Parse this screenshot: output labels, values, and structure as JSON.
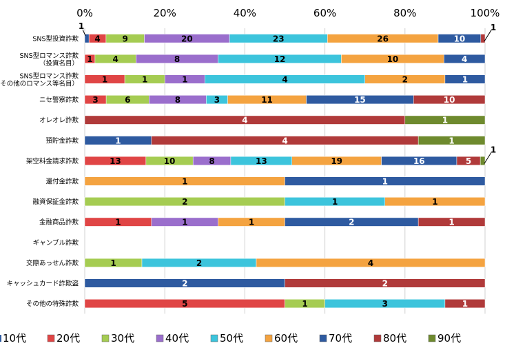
{
  "chart_data": {
    "type": "bar",
    "orientation": "horizontal",
    "stacked": "percent",
    "xlim": [
      0,
      100
    ],
    "x_ticks": [
      "0%",
      "20%",
      "40%",
      "60%",
      "80%",
      "100%"
    ],
    "grid": true,
    "legend_position": "bottom",
    "categories": [
      [
        "SNS型投資詐欺"
      ],
      [
        "SNS型ロマンス詐欺",
        "（投資名目）"
      ],
      [
        "SNS型ロマンス詐欺",
        "（その他のロマンス等名目）"
      ],
      [
        "ニセ警察詐欺"
      ],
      [
        "オレオレ詐欺"
      ],
      [
        "預貯金詐欺"
      ],
      [
        "架空料金請求詐欺"
      ],
      [
        "還付金詐欺"
      ],
      [
        "融資保証金詐欺"
      ],
      [
        "金融商品詐欺"
      ],
      [
        "ギャンブル詐欺"
      ],
      [
        "交際あっせん詐欺"
      ],
      [
        "キャッシュカード詐欺盗"
      ],
      [
        "その他の特殊詐欺"
      ]
    ],
    "series": [
      {
        "name": "10代",
        "color": "#2E5AA0",
        "values": [
          1,
          0,
          0,
          0,
          0,
          0,
          0,
          0,
          0,
          0,
          0,
          0,
          0,
          0
        ]
      },
      {
        "name": "20代",
        "color": "#E04545",
        "values": [
          4,
          1,
          1,
          3,
          0,
          0,
          13,
          0,
          0,
          1,
          0,
          0,
          0,
          5
        ]
      },
      {
        "name": "30代",
        "color": "#A5CC52",
        "values": [
          9,
          4,
          1,
          6,
          0,
          0,
          10,
          0,
          2,
          0,
          0,
          1,
          0,
          1
        ]
      },
      {
        "name": "40代",
        "color": "#9A6ECC",
        "values": [
          20,
          8,
          1,
          8,
          0,
          0,
          8,
          0,
          0,
          1,
          0,
          0,
          0,
          0
        ]
      },
      {
        "name": "50代",
        "color": "#3CC4DC",
        "values": [
          23,
          12,
          4,
          3,
          0,
          0,
          13,
          0,
          1,
          0,
          0,
          2,
          0,
          3
        ]
      },
      {
        "name": "60代",
        "color": "#F4A340",
        "values": [
          26,
          10,
          2,
          11,
          0,
          0,
          19,
          1,
          1,
          1,
          0,
          4,
          0,
          0
        ]
      },
      {
        "name": "70代",
        "color": "#2E5AA0",
        "values": [
          10,
          4,
          1,
          15,
          0,
          1,
          16,
          1,
          0,
          2,
          0,
          0,
          2,
          0
        ]
      },
      {
        "name": "80代",
        "color": "#B03A3A",
        "values": [
          1,
          0,
          0,
          10,
          4,
          4,
          5,
          0,
          0,
          1,
          0,
          0,
          2,
          1
        ]
      },
      {
        "name": "90代",
        "color": "#6E8A2E",
        "values": [
          0,
          0,
          0,
          0,
          1,
          1,
          1,
          0,
          0,
          0,
          0,
          0,
          0,
          0
        ]
      }
    ]
  }
}
